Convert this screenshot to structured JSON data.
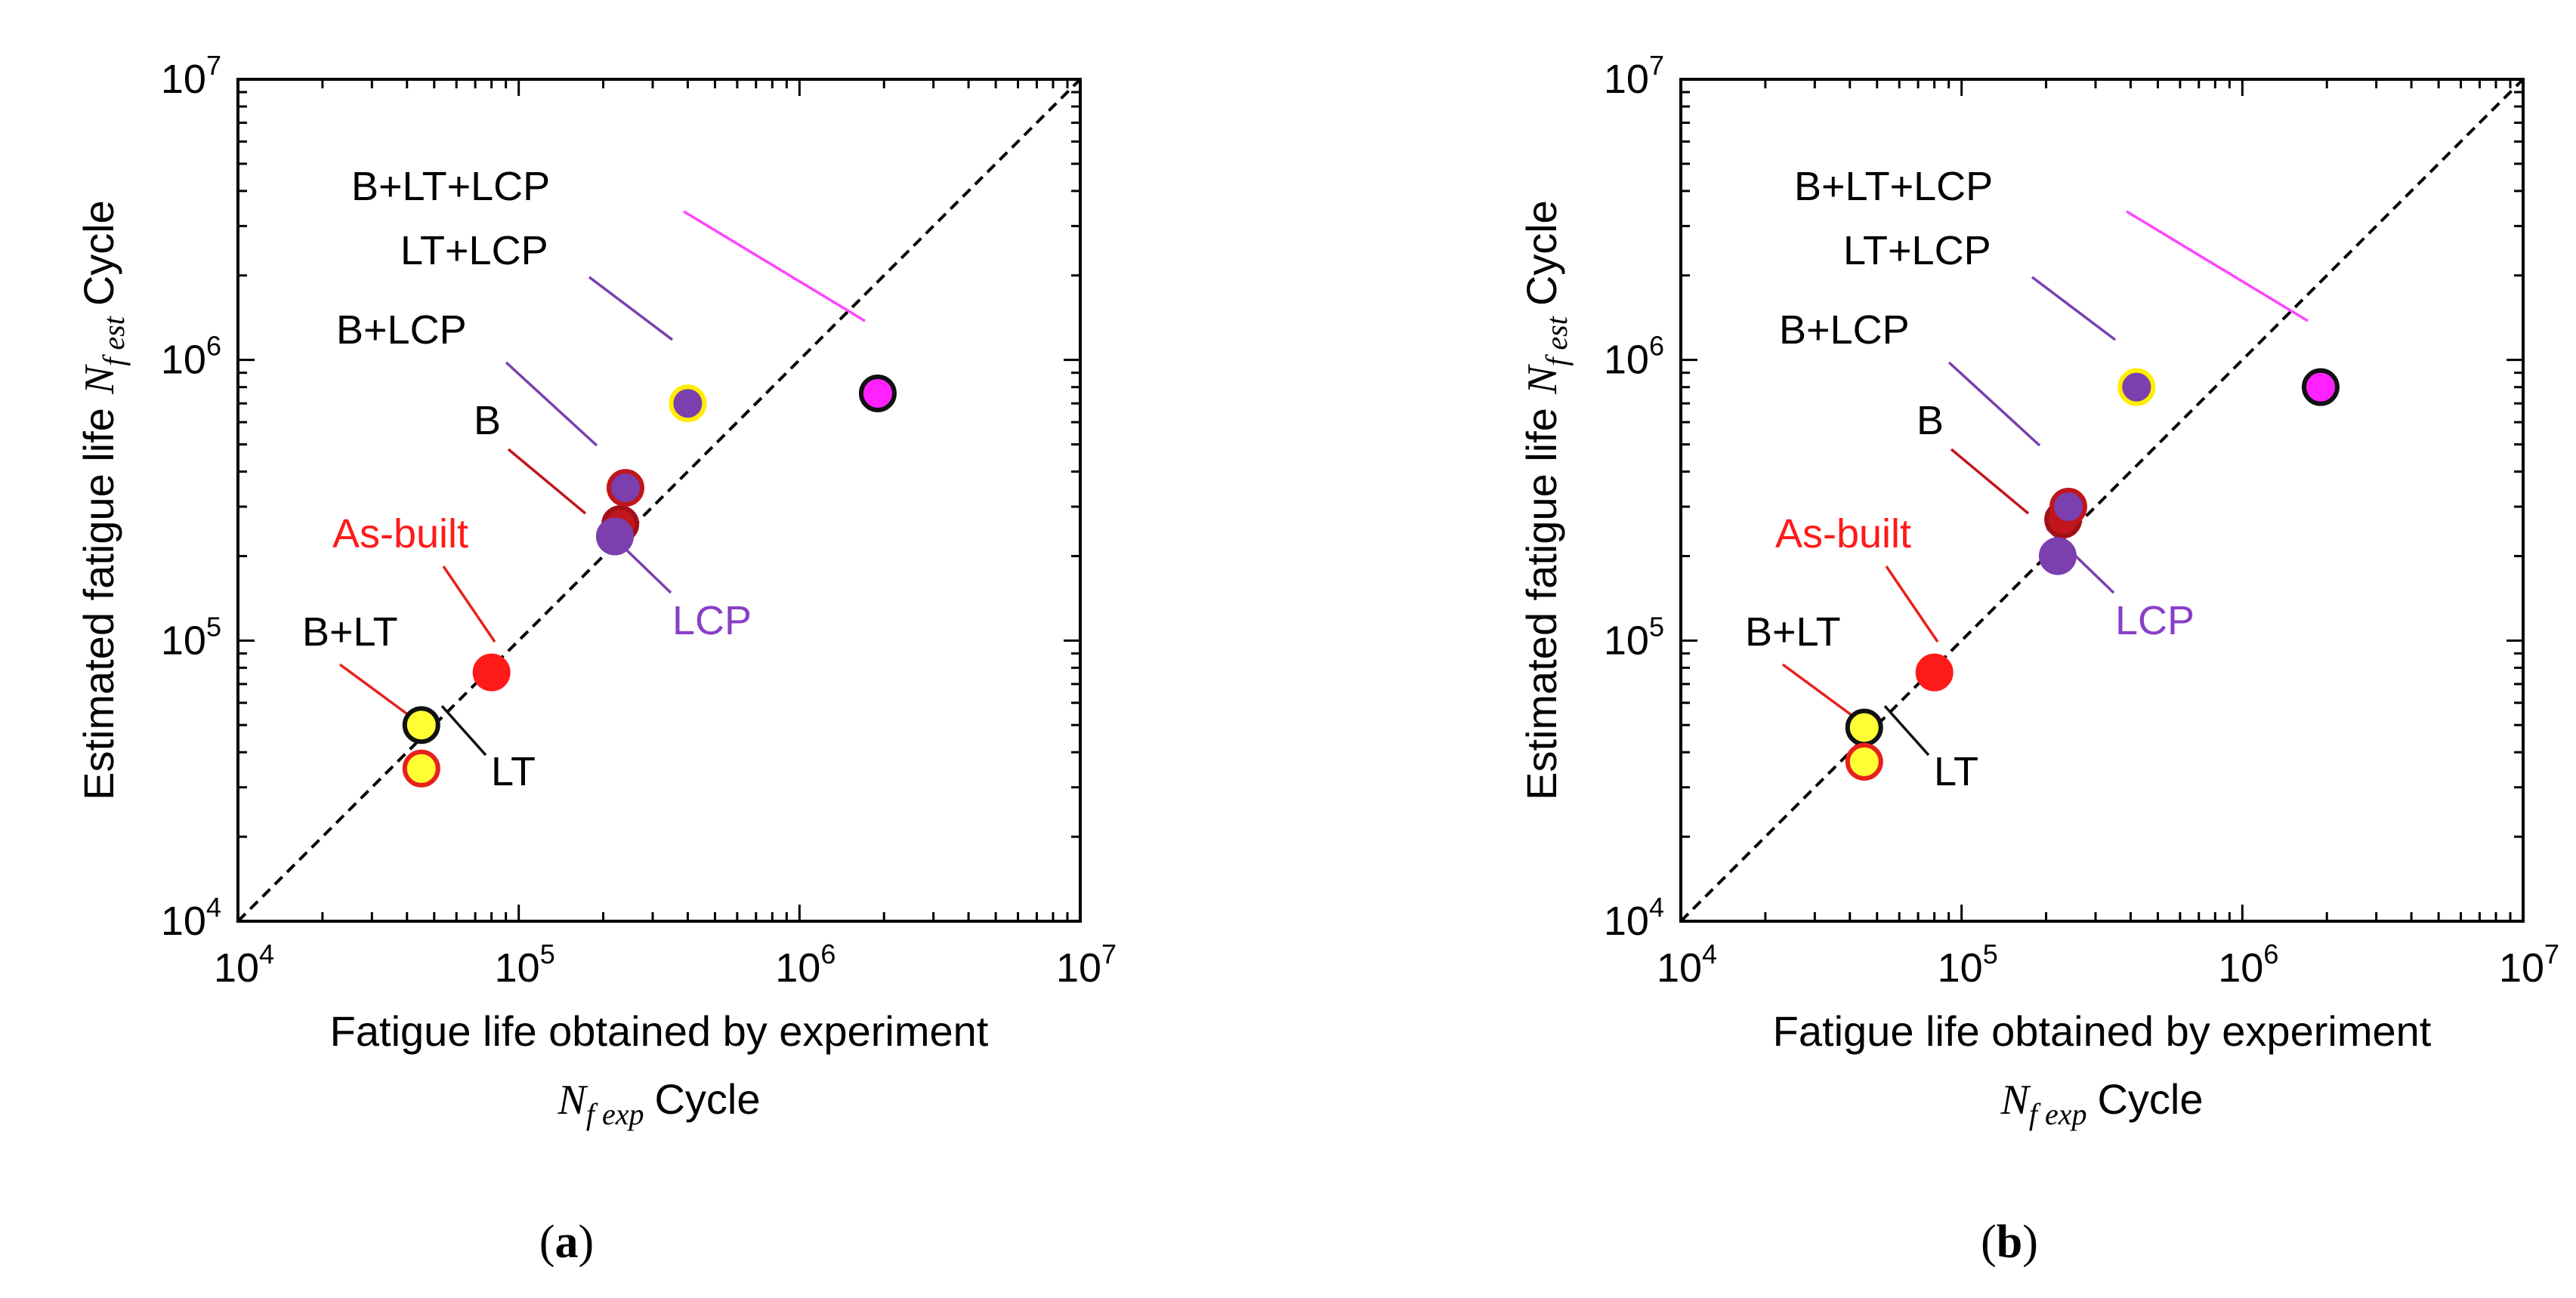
{
  "chart_data": [
    {
      "type": "scatter",
      "panel_label": "a",
      "xscale": "log",
      "yscale": "log",
      "xlim": [
        10000,
        10000000
      ],
      "ylim": [
        10000,
        10000000
      ],
      "xticks": [
        10000,
        100000,
        1000000,
        10000000
      ],
      "yticks": [
        10000,
        100000,
        1000000,
        10000000
      ],
      "tick_base": "10",
      "tick_exponents": [
        "4",
        "5",
        "6",
        "7"
      ],
      "xlabel_line1": "Fatigue life obtained by experiment",
      "xlabel_symbol_main": "N",
      "xlabel_symbol_sub": "f exp",
      "xlabel_unit": "Cycle",
      "ylabel_text": "Estimated fatigue life",
      "ylabel_symbol_main": "N",
      "ylabel_symbol_sub": "f est",
      "ylabel_unit": "Cycle",
      "reference_line": "y = x",
      "grid": false,
      "series": [
        {
          "name": "As-built",
          "x": 80000,
          "y": 77000,
          "fill": "#ff1a1a",
          "stroke": "#ff1a1a",
          "label_color": "#ff1a1a"
        },
        {
          "name": "B+LT",
          "x": 45000,
          "y": 35000,
          "fill": "#ffff33",
          "stroke": "#e8201c",
          "label_color": "#000000"
        },
        {
          "name": "LT",
          "x": 45000,
          "y": 50000,
          "fill": "#ffff33",
          "stroke": "#111111",
          "label_color": "#000000"
        },
        {
          "name": "B",
          "x": 230000,
          "y": 260000,
          "fill": "#c0161c",
          "stroke": "#a01018",
          "label_color": "#000000"
        },
        {
          "name": "B+LCP",
          "x": 240000,
          "y": 350000,
          "fill": "#7b3fae",
          "stroke": "#c0161c",
          "label_color": "#000000"
        },
        {
          "name": "LCP",
          "x": 220000,
          "y": 235000,
          "fill": "#7b3fae",
          "stroke": "#7b3fae",
          "label_color": "#8a3fc7"
        },
        {
          "name": "LT+LCP",
          "x": 400000,
          "y": 700000,
          "fill": "#7b3fae",
          "stroke": "#ffee00",
          "label_color": "#000000"
        },
        {
          "name": "B+LT+LCP",
          "x": 1900000,
          "y": 760000,
          "fill": "#ff22ff",
          "stroke": "#111111",
          "label_color": "#000000"
        }
      ]
    },
    {
      "type": "scatter",
      "panel_label": "b",
      "xscale": "log",
      "yscale": "log",
      "xlim": [
        10000,
        10000000
      ],
      "ylim": [
        10000,
        10000000
      ],
      "xticks": [
        10000,
        100000,
        1000000,
        10000000
      ],
      "yticks": [
        10000,
        100000,
        1000000,
        10000000
      ],
      "tick_base": "10",
      "tick_exponents": [
        "4",
        "5",
        "6",
        "7"
      ],
      "xlabel_line1": "Fatigue life obtained by experiment",
      "xlabel_symbol_main": "N",
      "xlabel_symbol_sub": "f exp",
      "xlabel_unit": "Cycle",
      "ylabel_text": "Estimated fatigue life",
      "ylabel_symbol_main": "N",
      "ylabel_symbol_sub": "f est",
      "ylabel_unit": "Cycle",
      "reference_line": "y = x",
      "grid": false,
      "series": [
        {
          "name": "As-built",
          "x": 80000,
          "y": 77000,
          "fill": "#ff1a1a",
          "stroke": "#ff1a1a",
          "label_color": "#ff1a1a"
        },
        {
          "name": "B+LT",
          "x": 45000,
          "y": 37000,
          "fill": "#ffff33",
          "stroke": "#e8201c",
          "label_color": "#000000"
        },
        {
          "name": "LT",
          "x": 45000,
          "y": 49000,
          "fill": "#ffff33",
          "stroke": "#111111",
          "label_color": "#000000"
        },
        {
          "name": "B",
          "x": 230000,
          "y": 270000,
          "fill": "#c0161c",
          "stroke": "#a01018",
          "label_color": "#000000"
        },
        {
          "name": "B+LCP",
          "x": 240000,
          "y": 300000,
          "fill": "#7b3fae",
          "stroke": "#c0161c",
          "label_color": "#000000"
        },
        {
          "name": "LCP",
          "x": 220000,
          "y": 200000,
          "fill": "#7b3fae",
          "stroke": "#7b3fae",
          "label_color": "#8a3fc7"
        },
        {
          "name": "LT+LCP",
          "x": 420000,
          "y": 800000,
          "fill": "#7b3fae",
          "stroke": "#ffee00",
          "label_color": "#000000"
        },
        {
          "name": "B+LT+LCP",
          "x": 1900000,
          "y": 800000,
          "fill": "#ff22ff",
          "stroke": "#111111",
          "label_color": "#000000"
        }
      ]
    }
  ]
}
